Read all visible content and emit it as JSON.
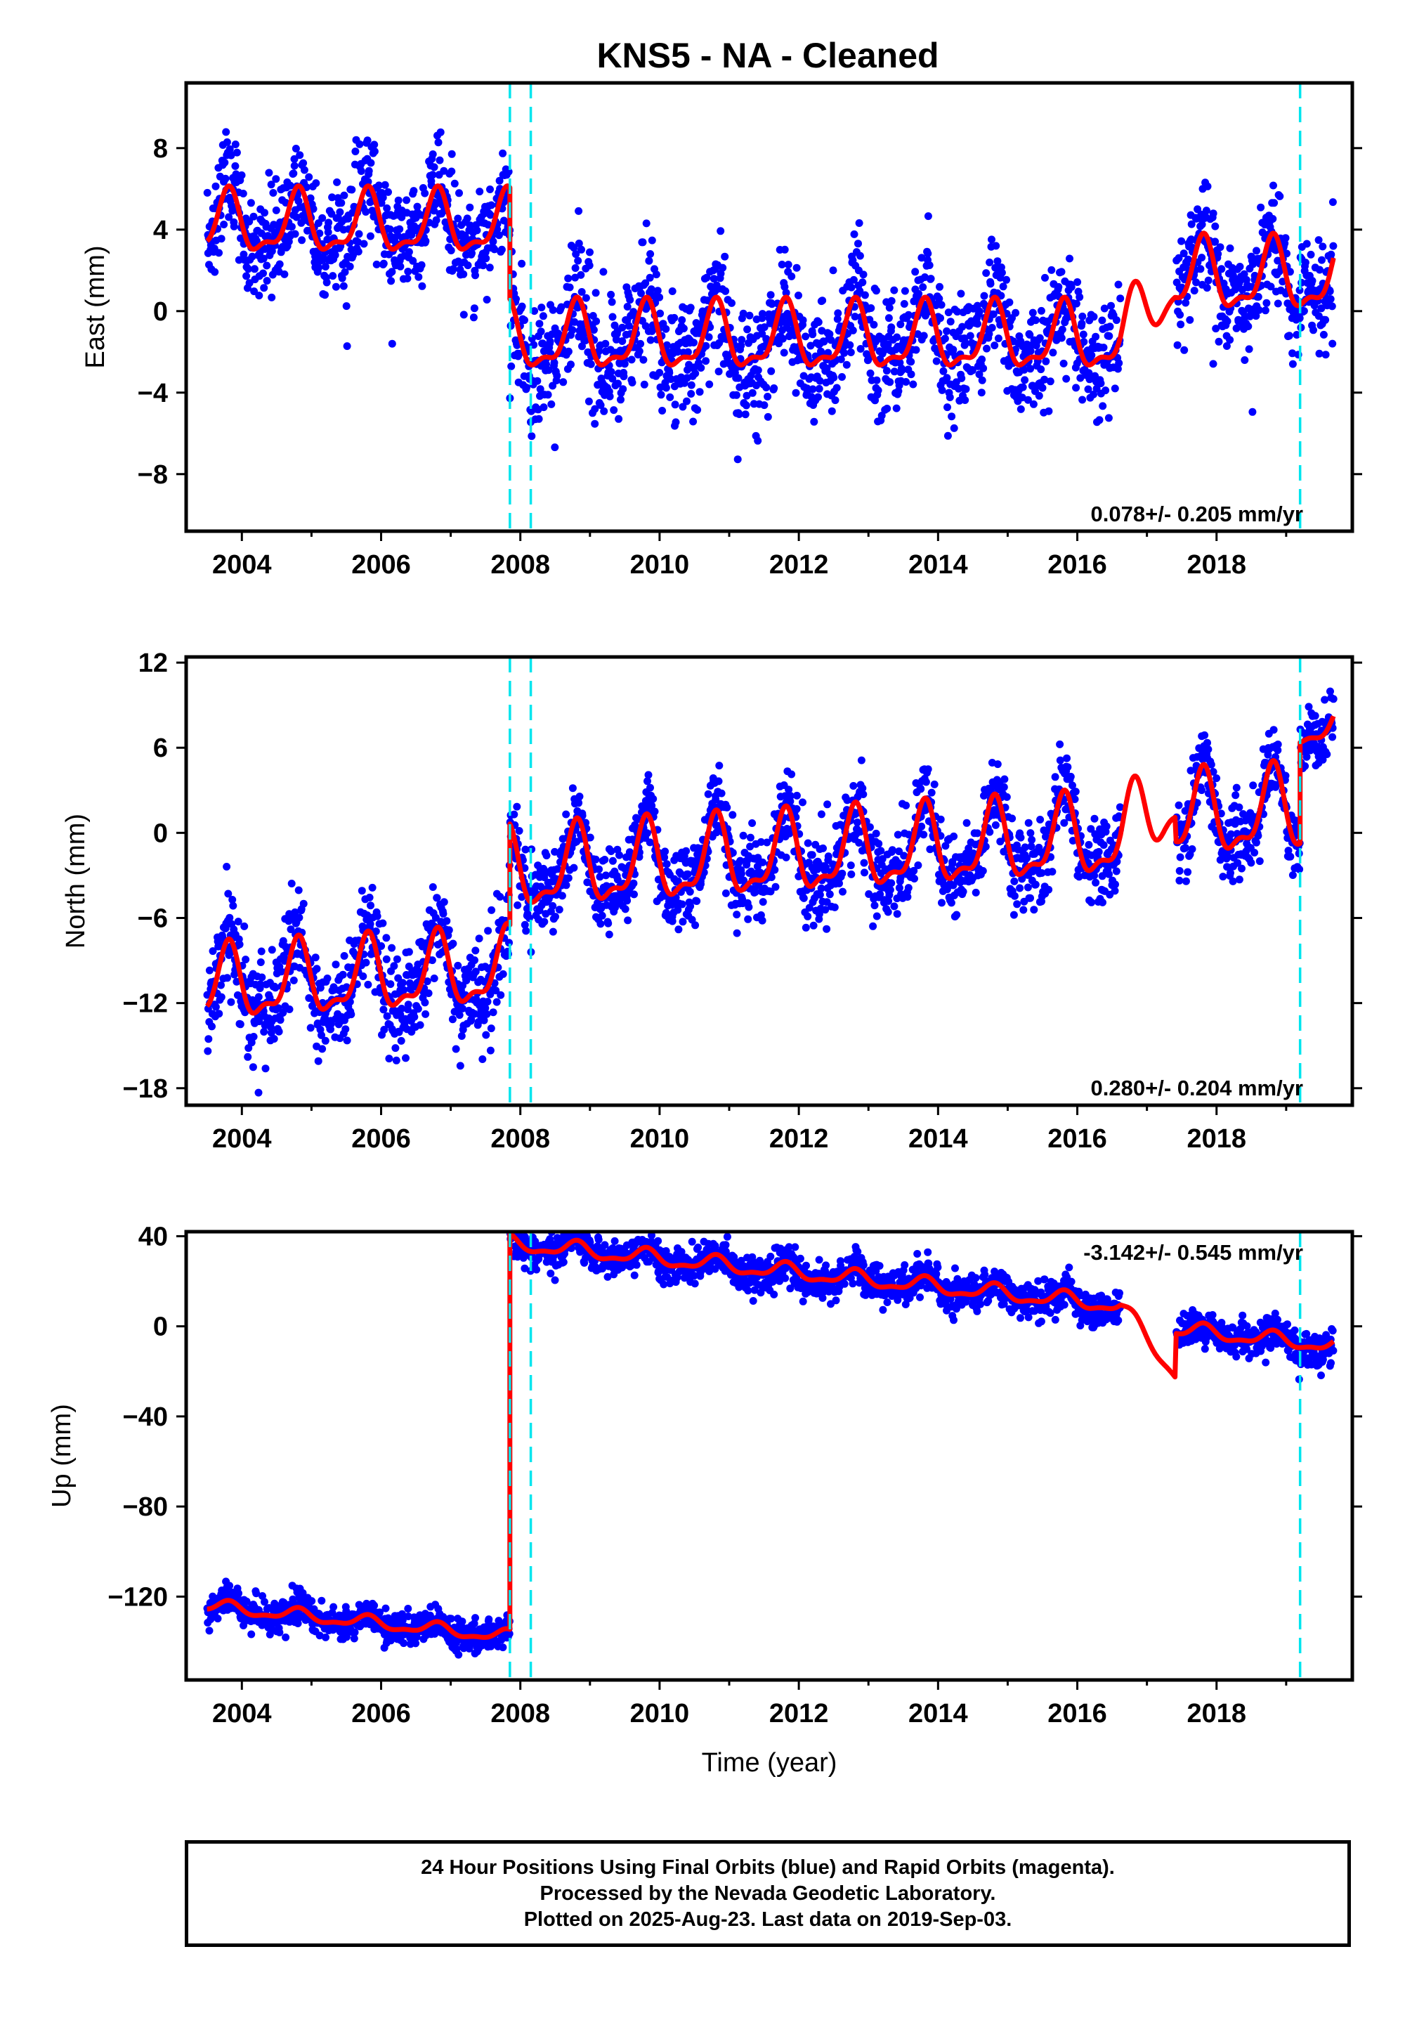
{
  "title": "KNS5  - NA - Cleaned",
  "chart_data": [
    {
      "type": "scatter",
      "name": "east",
      "ylabel": "East (mm)",
      "xlabel": "",
      "xlim": [
        2003.2,
        2019.95
      ],
      "ylim": [
        -10.8,
        11.2
      ],
      "x_ticks": [
        2004,
        2006,
        2008,
        2010,
        2012,
        2014,
        2016,
        2018
      ],
      "x_tick_labels": [
        "2004",
        "2006",
        "2008",
        "2010",
        "2012",
        "2014",
        "2016",
        "2018"
      ],
      "y_ticks": [
        -8,
        -4,
        0,
        4,
        8
      ],
      "y_tick_labels": [
        "−8",
        "−4",
        "0",
        "4",
        "8"
      ],
      "rate_text": "0.078+/- 0.205 mm/yr",
      "rate_position": "bottom-right",
      "segments": [
        {
          "from": 2003.5,
          "to": 2007.85,
          "offset": 4.2,
          "trend": 0.0,
          "amp": 1.4,
          "noise": 1.3
        },
        {
          "from": 2007.85,
          "to": 2016.62,
          "offset": -1.4,
          "trend": 0.0,
          "amp": 1.5,
          "noise": 1.45
        },
        {
          "from": 2017.42,
          "to": 2019.68,
          "offset": 1.6,
          "trend": 0.0,
          "amp": 1.6,
          "noise": 1.4
        }
      ],
      "steps": [
        2007.85,
        2008.15,
        2019.2
      ],
      "points_per_year": 150
    },
    {
      "type": "scatter",
      "name": "north",
      "ylabel": "North (mm)",
      "xlabel": "",
      "xlim": [
        2003.2,
        2019.95
      ],
      "ylim": [
        -19.2,
        12.4
      ],
      "x_ticks": [
        2004,
        2006,
        2008,
        2010,
        2012,
        2014,
        2016,
        2018
      ],
      "x_tick_labels": [
        "2004",
        "2006",
        "2008",
        "2010",
        "2012",
        "2014",
        "2016",
        "2018"
      ],
      "y_ticks": [
        -18,
        -12,
        -6,
        0,
        6,
        12
      ],
      "y_tick_labels": [
        "−18",
        "−12",
        "−6",
        "0",
        "6",
        "12"
      ],
      "rate_text": "0.280+/- 0.204 mm/yr",
      "rate_position": "bottom-right",
      "segments": [
        {
          "from": 2003.5,
          "to": 2007.85,
          "offset": -10.3,
          "trend": 0.28,
          "amp": 2.4,
          "noise": 1.8
        },
        {
          "from": 2007.85,
          "to": 2016.62,
          "offset": -1.6,
          "trend": 0.28,
          "amp": 2.6,
          "noise": 1.5
        },
        {
          "from": 2017.42,
          "to": 2019.2,
          "offset": 1.2,
          "trend": 0.28,
          "amp": 2.7,
          "noise": 1.5
        },
        {
          "from": 2019.2,
          "to": 2019.68,
          "offset": 7.4,
          "trend": 0.28,
          "amp": 1.2,
          "noise": 1.2
        }
      ],
      "steps": [
        2007.85,
        2008.15,
        2019.2
      ],
      "points_per_year": 150
    },
    {
      "type": "scatter",
      "name": "up",
      "ylabel": "Up (mm)",
      "xlabel": "Time (year)",
      "xlim": [
        2003.2,
        2019.95
      ],
      "ylim": [
        -157,
        42
      ],
      "x_ticks": [
        2004,
        2006,
        2008,
        2010,
        2012,
        2014,
        2016,
        2018
      ],
      "x_tick_labels": [
        "2004",
        "2006",
        "2008",
        "2010",
        "2012",
        "2014",
        "2016",
        "2018"
      ],
      "y_ticks": [
        -120,
        -80,
        -40,
        0,
        40
      ],
      "y_tick_labels": [
        "−120",
        "−80",
        "−40",
        "0",
        "40"
      ],
      "rate_text": "-3.142+/- 0.545 mm/yr",
      "rate_position": "top-right",
      "segments": [
        {
          "from": 2003.5,
          "to": 2007.85,
          "offset": -131,
          "trend": -3.142,
          "amp": 2.5,
          "noise": 3.5
        },
        {
          "from": 2007.85,
          "to": 2016.62,
          "offset": 23,
          "trend": -3.142,
          "amp": 3.2,
          "noise": 4.0
        },
        {
          "from": 2017.42,
          "to": 2019.68,
          "offset": -5,
          "trend": -3.142,
          "amp": 3.0,
          "noise": 3.8
        }
      ],
      "steps": [
        2007.85,
        2008.15,
        2019.2
      ],
      "points_per_year": 150
    }
  ],
  "caption": {
    "line1": "24 Hour Positions Using Final Orbits (blue) and Rapid Orbits (magenta).",
    "line2": "Processed by the Nevada Geodetic Laboratory.",
    "line3": "Plotted on 2025-Aug-23. Last data on 2019-Sep-03."
  },
  "colors": {
    "points": "#0000ff",
    "model": "#ff0000",
    "steps": "#00e5ee",
    "frame": "#000000"
  }
}
